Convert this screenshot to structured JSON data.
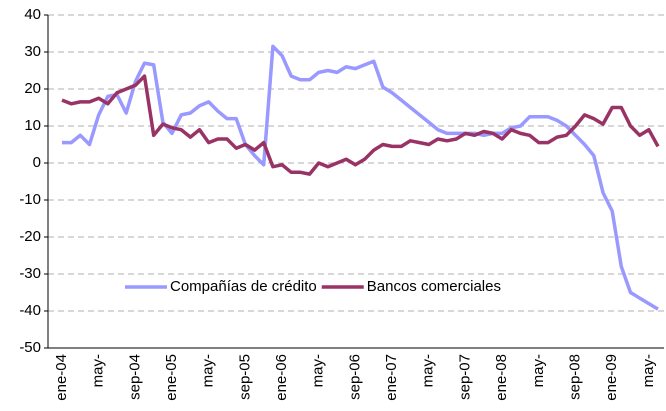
{
  "chart_data": {
    "type": "line",
    "categories": [
      "ene-04",
      null,
      null,
      null,
      "may-",
      null,
      null,
      null,
      "sep-04",
      null,
      null,
      null,
      "ene-05",
      null,
      null,
      null,
      "may-",
      null,
      null,
      null,
      "sep-05",
      null,
      null,
      null,
      "ene-06",
      null,
      null,
      null,
      "may-",
      null,
      null,
      null,
      "sep-06",
      null,
      null,
      null,
      "ene-07",
      null,
      null,
      null,
      "may-",
      null,
      null,
      null,
      "sep-07",
      null,
      null,
      null,
      "ene-08",
      null,
      null,
      null,
      "may-",
      null,
      null,
      null,
      "sep-08",
      null,
      null,
      null,
      "ene-09",
      null,
      null,
      null,
      "may-",
      null
    ],
    "series": [
      {
        "name": "Compañías de crédito",
        "color": "#9999ff",
        "values": [
          5.5,
          5.5,
          7.5,
          5,
          13,
          18,
          18.5,
          13.5,
          22,
          27,
          26.5,
          11,
          8,
          13,
          13.5,
          15.5,
          16.5,
          14,
          12,
          12,
          5,
          2,
          -0.5,
          31.5,
          29,
          23.5,
          22.5,
          22.5,
          24.5,
          25,
          24.5,
          26,
          25.5,
          26.5,
          27.5,
          20.5,
          19,
          17,
          15,
          13,
          11,
          9,
          8,
          8,
          8,
          8,
          7.5,
          8,
          8,
          9.5,
          10,
          12.5,
          12.5,
          12.5,
          11.5,
          10,
          7.5,
          5,
          2,
          -8,
          -13,
          -28,
          -35,
          -36.5,
          -38,
          -39.5
        ]
      },
      {
        "name": "Bancos comerciales",
        "color": "#993366",
        "values": [
          17,
          16,
          16.5,
          16.5,
          17.5,
          16,
          19,
          20,
          21,
          23.5,
          7.5,
          10.5,
          9.5,
          9,
          7,
          9,
          5.5,
          6.5,
          6.5,
          4,
          5,
          3.5,
          5.5,
          -1,
          -0.5,
          -2.5,
          -2.5,
          -3,
          0,
          -1,
          0,
          1,
          -0.5,
          1,
          3.5,
          5,
          4.5,
          4.5,
          6,
          5.5,
          5,
          6.5,
          6,
          6.5,
          8,
          7.5,
          8.5,
          8,
          6.5,
          9,
          8,
          7.5,
          5.5,
          5.5,
          7,
          7.5,
          10,
          13,
          12,
          10.5,
          15,
          15,
          10,
          7.5,
          9,
          4.5
        ]
      }
    ],
    "ylim": [
      -50,
      40
    ],
    "yticks": [
      -50,
      -40,
      -30,
      -20,
      -10,
      0,
      10,
      20,
      30,
      40
    ],
    "grid": true
  }
}
